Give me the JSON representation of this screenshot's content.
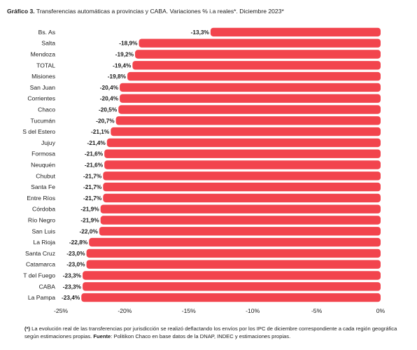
{
  "header": {
    "prefix": "Gráfico 3.",
    "text": "Transferencias automáticas a provincias y CABA. Variaciones % i.a reales*. Diciembre 2023*"
  },
  "chart_data": {
    "type": "bar",
    "orientation": "horizontal",
    "categories": [
      "Bs. As",
      "Salta",
      "Mendoza",
      "TOTAL",
      "Misiones",
      "San Juan",
      "Corrientes",
      "Chaco",
      "Tucumán",
      "S del Estero",
      "Jujuy",
      "Formosa",
      "Neuquén",
      "Chubut",
      "Santa Fe",
      "Entre Ríos",
      "Córdoba",
      "Río Negro",
      "San Luis",
      "La Rioja",
      "Santa Cruz",
      "Catamarca",
      "T del Fuego",
      "CABA",
      "La Pampa"
    ],
    "values": [
      -13.3,
      -18.9,
      -19.2,
      -19.4,
      -19.8,
      -20.4,
      -20.4,
      -20.5,
      -20.7,
      -21.1,
      -21.4,
      -21.6,
      -21.6,
      -21.7,
      -21.7,
      -21.7,
      -21.9,
      -21.9,
      -22.0,
      -22.8,
      -23.0,
      -23.0,
      -23.3,
      -23.3,
      -23.4
    ],
    "value_labels": [
      "-13,3%",
      "-18,9%",
      "-19,2%",
      "-19,4%",
      "-19,8%",
      "-20,4%",
      "-20,4%",
      "-20,5%",
      "-20,7%",
      "-21,1%",
      "-21,4%",
      "-21,6%",
      "-21,6%",
      "-21,7%",
      "-21,7%",
      "-21,7%",
      "-21,9%",
      "-21,9%",
      "-22,0%",
      "-22,8%",
      "-23,0%",
      "-23,0%",
      "-23,3%",
      "-23,3%",
      "-23,4%"
    ],
    "xlim": [
      -25,
      0
    ],
    "x_ticks": [
      -25,
      -20,
      -15,
      -10,
      -5,
      0
    ],
    "x_tick_labels": [
      "-25%",
      "-20%",
      "-15%",
      "-10%",
      "-5%",
      "0%"
    ],
    "bar_color": "#f2444d",
    "grid": false,
    "legend": "none"
  },
  "footnote": {
    "marker": "(*)",
    "text": "La evolución real de las transferencias por jurisdicción se realizó deflactando los envíos por los IPC de diciembre correspondiente a cada región geográfica según estimaciones propias.",
    "source_label": "Fuente",
    "source_text": ": Politikon Chaco en base datos de la DNAP, INDEC y estimaciones propias."
  }
}
